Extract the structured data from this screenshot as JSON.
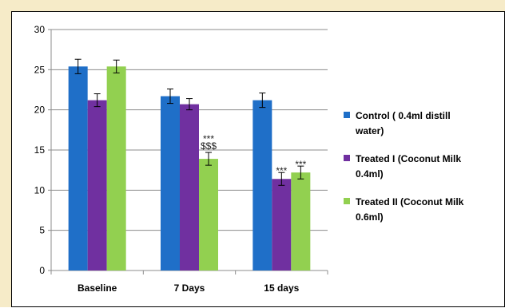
{
  "chart_data": {
    "type": "bar",
    "categories": [
      "Baseline",
      "7 Days",
      "15 days"
    ],
    "series": [
      {
        "name": "Control ( 0.4ml distill water)",
        "legend_lines": [
          "Control ( 0.4ml distill",
          "water)"
        ],
        "color": "#1F6FC8",
        "values": [
          25.4,
          21.7,
          21.2
        ],
        "errors": [
          0.9,
          0.9,
          0.9
        ]
      },
      {
        "name": "Treated I (Coconut Milk 0.4ml)",
        "legend_lines": [
          "Treated I (Coconut Milk",
          "0.4ml)"
        ],
        "color": "#7030A0",
        "values": [
          21.2,
          20.7,
          11.4
        ],
        "errors": [
          0.8,
          0.7,
          0.8
        ]
      },
      {
        "name": "Treated II (Coconut Milk 0.6ml)",
        "legend_lines": [
          "Treated II (Coconut Milk",
          "0.6ml)"
        ],
        "color": "#92D050",
        "values": [
          25.4,
          13.9,
          12.2
        ],
        "errors": [
          0.8,
          0.8,
          0.8
        ]
      }
    ],
    "ylim": [
      0,
      30
    ],
    "yticks": [
      0,
      5,
      10,
      15,
      20,
      25,
      30
    ],
    "grid": true,
    "legend_position": "right",
    "title": "",
    "xlabel": "",
    "ylabel": "",
    "annotations": [
      {
        "category": 1,
        "series": 2,
        "lines": [
          "***",
          "$$$"
        ]
      },
      {
        "category": 2,
        "series": 1,
        "lines": [
          "***"
        ]
      },
      {
        "category": 2,
        "series": 2,
        "lines": [
          "***"
        ]
      }
    ]
  }
}
